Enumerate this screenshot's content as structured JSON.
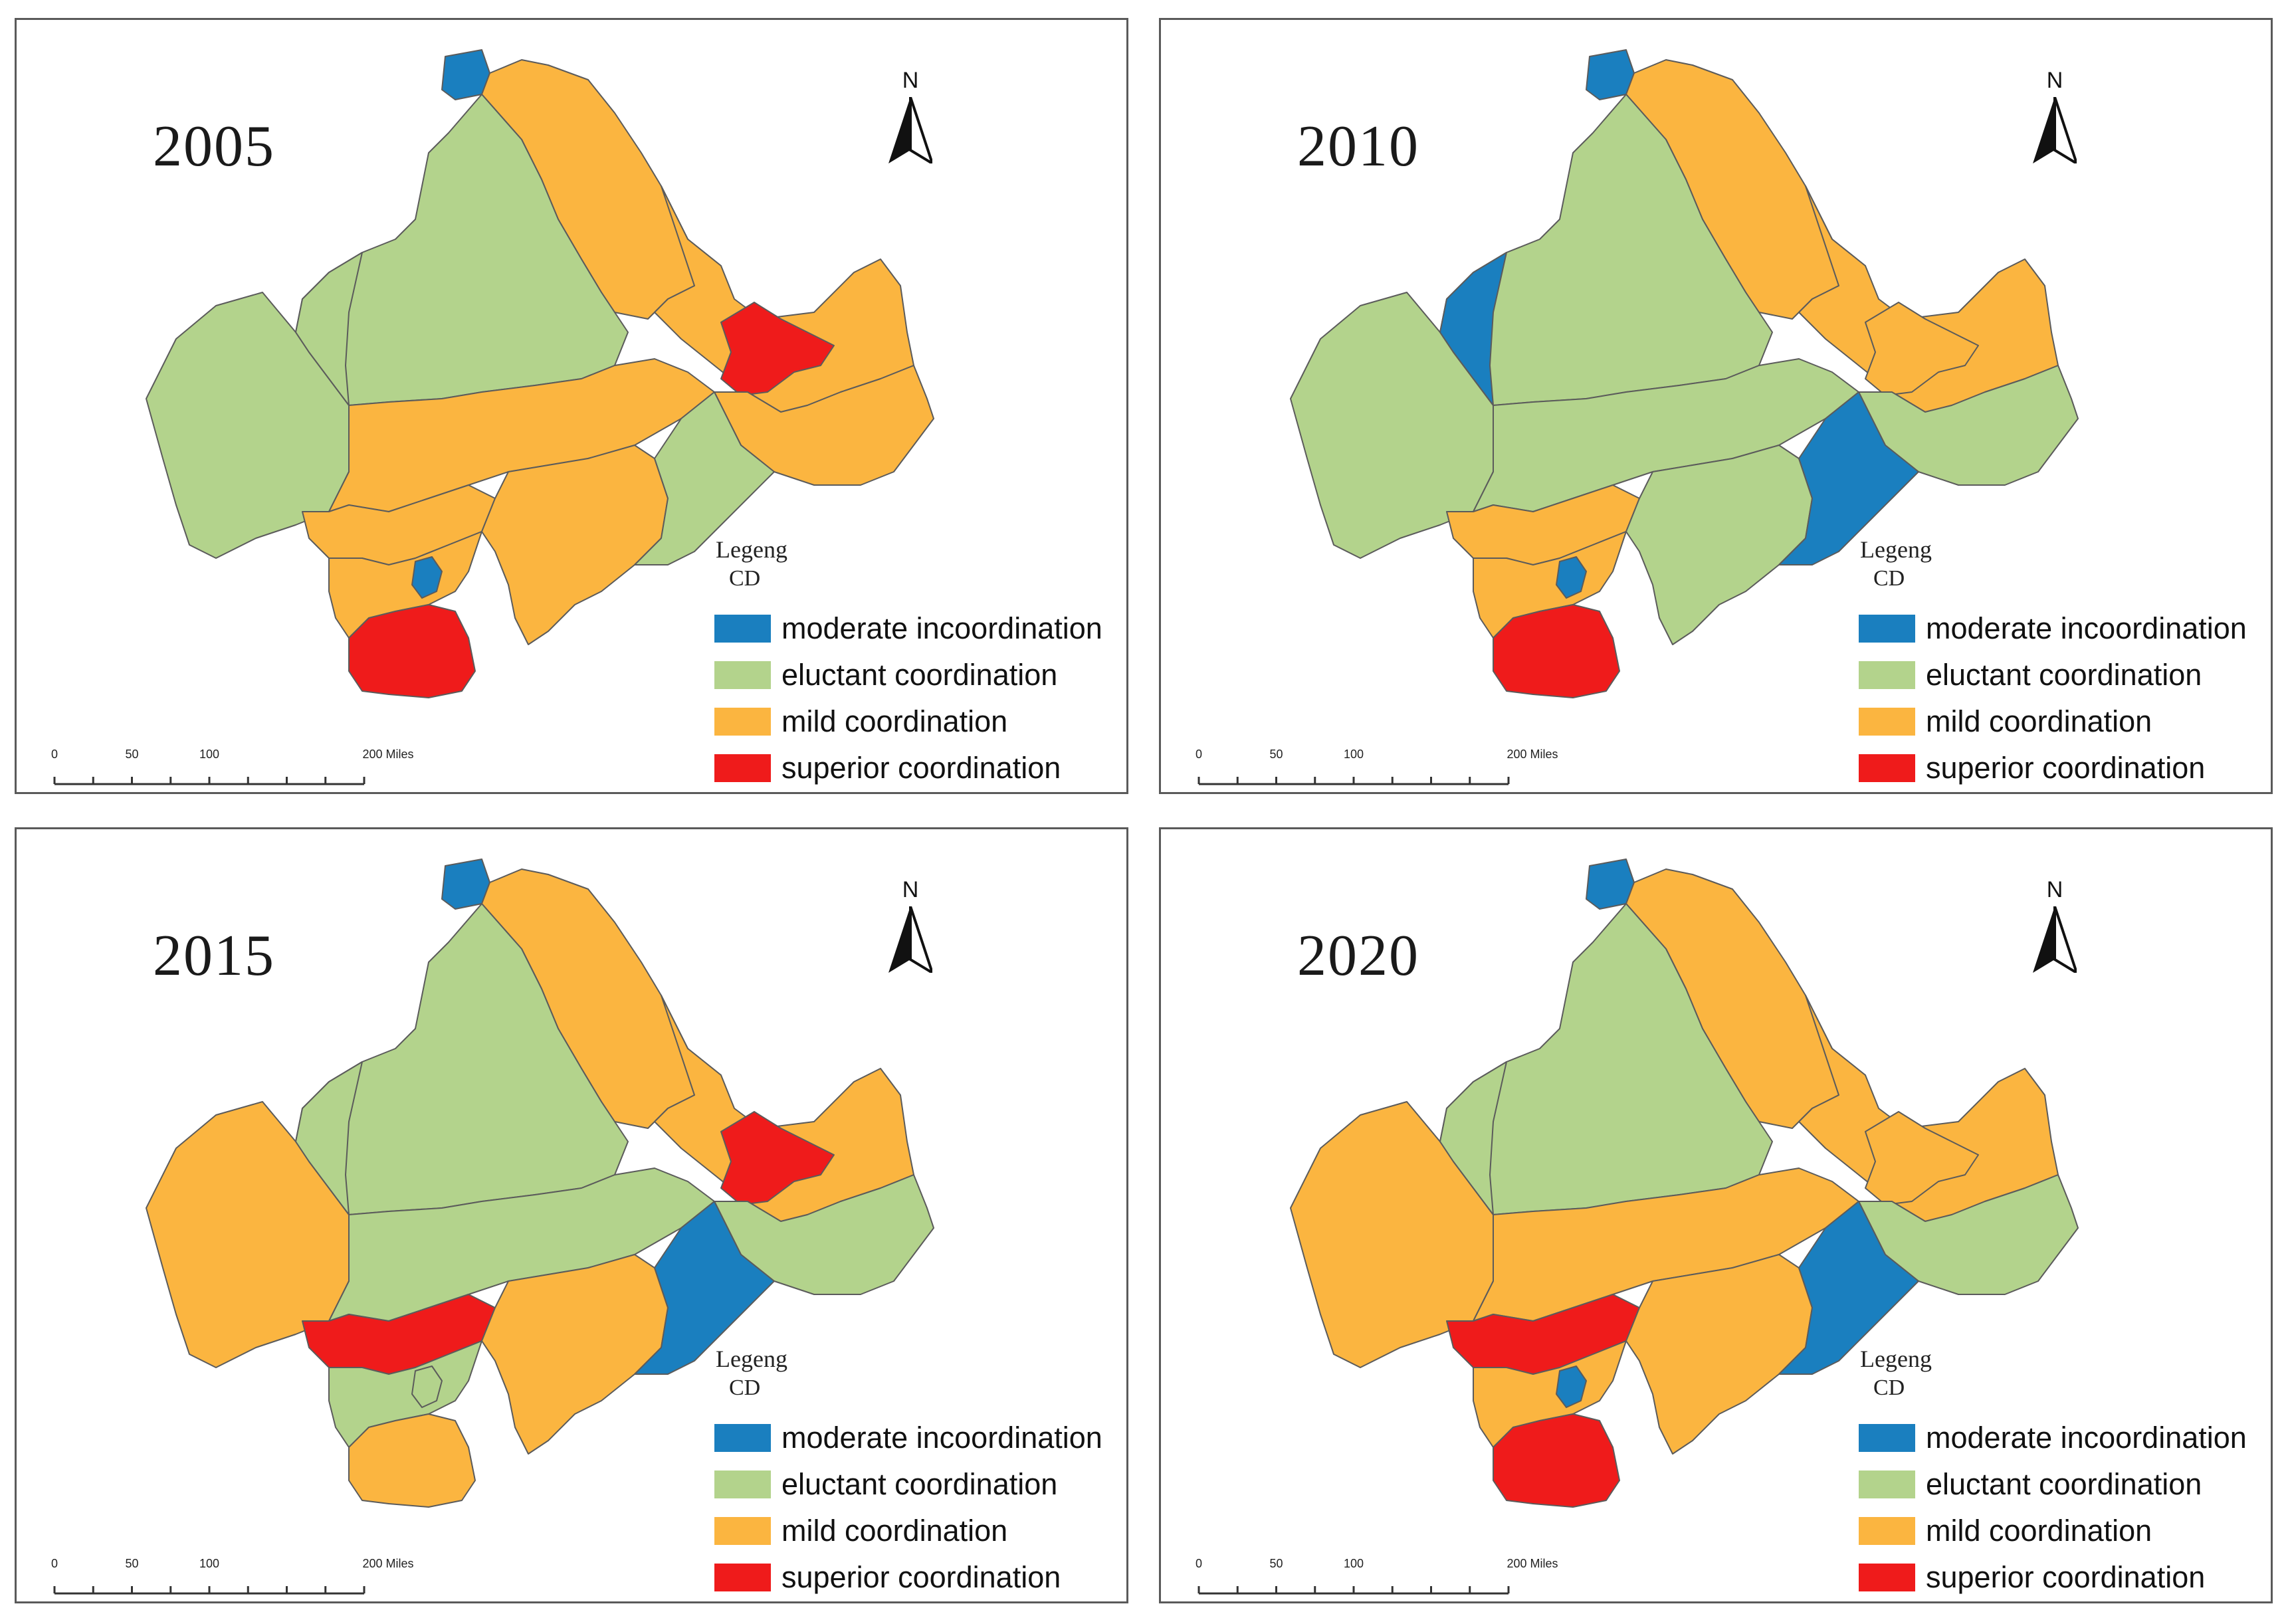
{
  "colors": {
    "moderate_incoordination": "#1a7fbf",
    "eluctant_coordination": "#b3d38c",
    "mild_coordination": "#fbb540",
    "superior_coordination": "#ef1b1b",
    "boundary": "#5b5b5b"
  },
  "legend": {
    "title": "Legeng",
    "subtitle": "CD",
    "items": [
      {
        "key": "moderate_incoordination",
        "label": "moderate incoordination"
      },
      {
        "key": "eluctant_coordination",
        "label": "eluctant coordination"
      },
      {
        "key": "mild_coordination",
        "label": "mild coordination"
      },
      {
        "key": "superior_coordination",
        "label": "superior coordination"
      }
    ]
  },
  "north_arrow": {
    "label": "N"
  },
  "scale_bar": {
    "labels": [
      "0",
      "50",
      "100",
      "200 Miles"
    ],
    "values": [
      0,
      50,
      100,
      200
    ]
  },
  "panels": [
    {
      "year": "2005",
      "regions": {
        "north_tip": "moderate_incoordination",
        "north_belt": "mild_coordination",
        "northwest_block": "eluctant_coordination",
        "west": "eluctant_coordination",
        "northwest_strip": "eluctant_coordination",
        "northeast_lobe": "mild_coordination",
        "northeast_city": "superior_coordination",
        "east": "mild_coordination",
        "center": "mild_coordination",
        "southwest_arm": "mild_coordination",
        "south_center": "mild_coordination",
        "south_east": "eluctant_coordination",
        "south_neck": "mild_coordination",
        "south_lake": "moderate_incoordination",
        "south_tip": "superior_coordination"
      }
    },
    {
      "year": "2010",
      "regions": {
        "north_tip": "moderate_incoordination",
        "north_belt": "mild_coordination",
        "northwest_block": "eluctant_coordination",
        "west": "eluctant_coordination",
        "northwest_strip": "moderate_incoordination",
        "northeast_lobe": "mild_coordination",
        "northeast_city": "mild_coordination",
        "east": "eluctant_coordination",
        "center": "eluctant_coordination",
        "southwest_arm": "mild_coordination",
        "south_center": "eluctant_coordination",
        "south_east": "moderate_incoordination",
        "south_neck": "mild_coordination",
        "south_lake": "moderate_incoordination",
        "south_tip": "superior_coordination"
      }
    },
    {
      "year": "2015",
      "regions": {
        "north_tip": "moderate_incoordination",
        "north_belt": "mild_coordination",
        "northwest_block": "eluctant_coordination",
        "west": "mild_coordination",
        "northwest_strip": "eluctant_coordination",
        "northeast_lobe": "mild_coordination",
        "northeast_city": "superior_coordination",
        "east": "eluctant_coordination",
        "center": "eluctant_coordination",
        "southwest_arm": "superior_coordination",
        "south_center": "mild_coordination",
        "south_east": "moderate_incoordination",
        "south_neck": "eluctant_coordination",
        "south_lake": "eluctant_coordination",
        "south_tip": "mild_coordination"
      }
    },
    {
      "year": "2020",
      "regions": {
        "north_tip": "moderate_incoordination",
        "north_belt": "mild_coordination",
        "northwest_block": "eluctant_coordination",
        "west": "mild_coordination",
        "northwest_strip": "eluctant_coordination",
        "northeast_lobe": "mild_coordination",
        "northeast_city": "mild_coordination",
        "east": "eluctant_coordination",
        "center": "mild_coordination",
        "southwest_arm": "superior_coordination",
        "south_center": "mild_coordination",
        "south_east": "moderate_incoordination",
        "south_neck": "mild_coordination",
        "south_lake": "moderate_incoordination",
        "south_tip": "superior_coordination"
      }
    }
  ]
}
